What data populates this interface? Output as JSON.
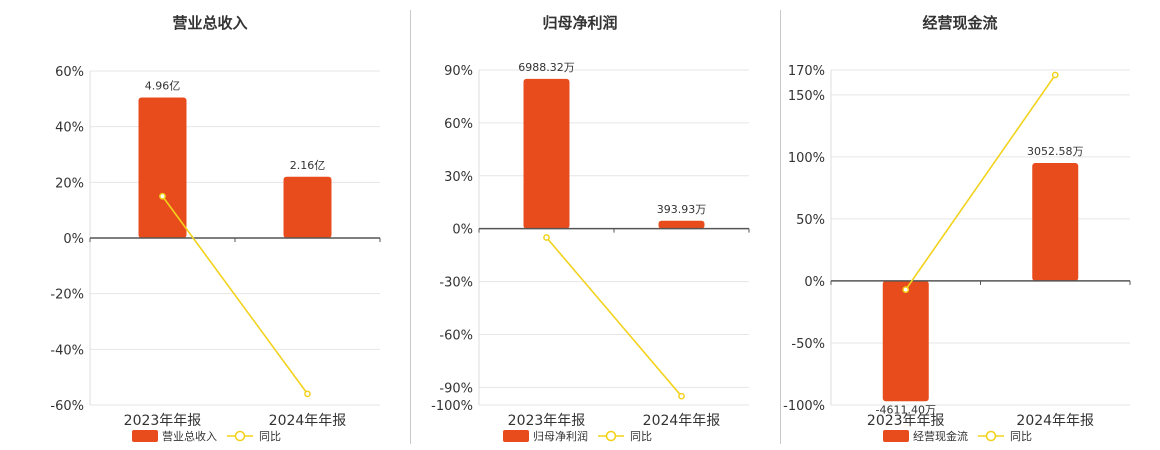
{
  "colors": {
    "bar": "#e84c1c",
    "line": "#f2d21b",
    "grid": "#e6e6e6",
    "axis": "#555555"
  },
  "legend": {
    "line_label": "同比"
  },
  "chart_data": [
    {
      "type": "bar",
      "title": "营业总收入",
      "categories": [
        "2023年年报",
        "2024年年报"
      ],
      "series": [
        {
          "name": "营业总收入",
          "kind": "bar",
          "values": [
            50.5,
            22.0
          ],
          "labels": [
            "4.96亿",
            "2.16亿"
          ]
        },
        {
          "name": "同比",
          "kind": "line",
          "values": [
            15,
            -56
          ]
        }
      ],
      "yticks": [
        60,
        40,
        20,
        0,
        -20,
        -40,
        -60
      ],
      "ytick_labels": [
        "60%",
        "40%",
        "20%",
        "0%",
        "-20%",
        "-40%",
        "-60%"
      ],
      "ylim": [
        -60,
        60
      ],
      "legend_position": "bottom"
    },
    {
      "type": "bar",
      "title": "归母净利润",
      "categories": [
        "2023年年报",
        "2024年年报"
      ],
      "series": [
        {
          "name": "归母净利润",
          "kind": "bar",
          "values": [
            85,
            4.5
          ],
          "labels": [
            "6988.32万",
            "393.93万"
          ]
        },
        {
          "name": "同比",
          "kind": "line",
          "values": [
            -5,
            -95
          ]
        }
      ],
      "yticks": [
        90,
        60,
        30,
        0,
        -30,
        -60,
        -90,
        -100
      ],
      "ytick_labels": [
        "90%",
        "60%",
        "30%",
        "0%",
        "-30%",
        "-60%",
        "-90%",
        "-100%"
      ],
      "ylim": [
        -100,
        90
      ],
      "legend_position": "bottom"
    },
    {
      "type": "bar",
      "title": "经营现金流",
      "categories": [
        "2023年年报",
        "2024年年报"
      ],
      "series": [
        {
          "name": "经营现金流",
          "kind": "bar",
          "values": [
            -97,
            95
          ],
          "labels": [
            "-4611.40万",
            "3052.58万"
          ]
        },
        {
          "name": "同比",
          "kind": "line",
          "values": [
            -7,
            166
          ]
        }
      ],
      "yticks": [
        170,
        150,
        100,
        50,
        0,
        -50,
        -100
      ],
      "ytick_labels": [
        "170%",
        "150%",
        "100%",
        "50%",
        "0%",
        "-50%",
        "-100%"
      ],
      "ylim": [
        -100,
        170
      ],
      "legend_position": "bottom"
    }
  ]
}
